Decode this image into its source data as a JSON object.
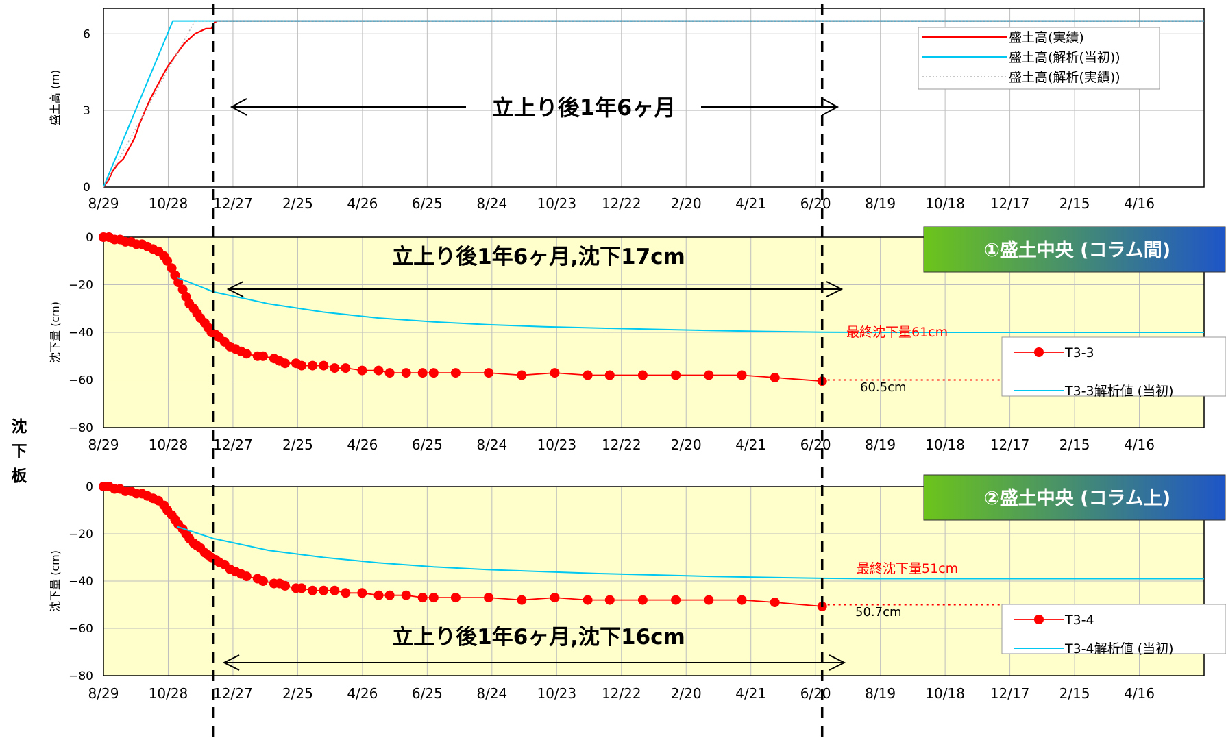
{
  "side_label": "沈下板",
  "colors": {
    "measured": "#ff0000",
    "analysis": "#00c8f0",
    "analysis_actual": "#b4b4b4",
    "plot_bg": "#ffffcc",
    "grid": "#bebebe",
    "banner_left": "#6cc41a",
    "banner_right": "#1e55c8"
  },
  "x_tick_labels": [
    "8/29",
    "10/28",
    "12/27",
    "2/25",
    "4/26",
    "6/25",
    "8/24",
    "10/23",
    "12/22",
    "2/20",
    "4/21",
    "6/20",
    "8/19",
    "10/18",
    "12/17",
    "2/15",
    "4/16"
  ],
  "marker_lines": {
    "style": "dashed-black",
    "start_day": 100,
    "end_day": 653
  },
  "chart_data": [
    {
      "type": "line",
      "ylabel": "盛土高 (m)",
      "ylim": [
        0,
        7
      ],
      "yticks": [
        0,
        3,
        6
      ],
      "xlim_days": [
        0,
        1000
      ],
      "grid": true,
      "legend_position": "top-right",
      "annotation": "立上り後1年6ヶ月",
      "series": [
        {
          "name": "盛土高(実績)",
          "style": "solid-red",
          "x": [
            0,
            5,
            8,
            13,
            18,
            23,
            28,
            33,
            38,
            43,
            48,
            53,
            58,
            63,
            68,
            73,
            78,
            83,
            88,
            93,
            98,
            100,
            103,
            105,
            1000
          ],
          "y": [
            0,
            0.3,
            0.6,
            0.9,
            1.1,
            1.5,
            1.9,
            2.5,
            3.0,
            3.5,
            3.9,
            4.3,
            4.7,
            5.0,
            5.3,
            5.6,
            5.8,
            6.0,
            6.1,
            6.2,
            6.2,
            6.4,
            6.5,
            6.5,
            6.5
          ]
        },
        {
          "name": "盛土高(解析(当初))",
          "style": "solid-cyan",
          "x": [
            0,
            63,
            1000
          ],
          "y": [
            0,
            6.5,
            6.5
          ]
        },
        {
          "name": "盛土高(解析(実績))",
          "style": "dotted-gray",
          "x": [
            0,
            83,
            1000
          ],
          "y": [
            0,
            6.5,
            6.5
          ]
        }
      ]
    },
    {
      "type": "line",
      "ylabel": "沈下量 (cm)",
      "ylim": [
        -80,
        0
      ],
      "yticks": [
        0,
        -20,
        -40,
        -60,
        -80
      ],
      "xlim_days": [
        0,
        1000
      ],
      "grid": true,
      "banner": "①盛土中央 (コラム間)",
      "annotation": "立上り後1年6ヶ月,沈下17cm",
      "final_label": "最終沈下量61cm",
      "value_label": "60.5cm",
      "legend_position": "right",
      "series": [
        {
          "name": "T3-3",
          "style": "red-dots",
          "x": [
            0,
            5,
            10,
            15,
            20,
            25,
            30,
            35,
            40,
            45,
            50,
            55,
            58,
            62,
            65,
            68,
            72,
            75,
            78,
            82,
            85,
            88,
            92,
            95,
            98,
            102,
            105,
            110,
            115,
            120,
            125,
            130,
            140,
            145,
            155,
            160,
            165,
            175,
            180,
            190,
            200,
            210,
            220,
            235,
            250,
            260,
            275,
            290,
            300,
            320,
            350,
            380,
            410,
            440,
            460,
            490,
            520,
            550,
            580,
            610,
            653
          ],
          "y": [
            0,
            0,
            -1,
            -1,
            -2,
            -2,
            -3,
            -3,
            -4,
            -5,
            -6,
            -8,
            -10,
            -13,
            -16,
            -19,
            -22,
            -25,
            -28,
            -30,
            -32,
            -34,
            -36,
            -38,
            -40,
            -41,
            -42,
            -44,
            -46,
            -47,
            -48,
            -49,
            -50,
            -50,
            -51,
            -52,
            -53,
            -53,
            -54,
            -54,
            -54,
            -55,
            -55,
            -56,
            -56,
            -57,
            -57,
            -57,
            -57,
            -57,
            -57,
            -58,
            -57,
            -58,
            -58,
            -58,
            -58,
            -58,
            -58,
            -59,
            -60.5
          ]
        },
        {
          "name": "T3-3解析値 (当初)",
          "style": "solid-cyan",
          "x": [
            67,
            100,
            150,
            200,
            250,
            300,
            350,
            400,
            450,
            500,
            550,
            600,
            653,
            700,
            800,
            1000
          ],
          "y": [
            -17,
            -23,
            -28,
            -31.5,
            -34,
            -35.6,
            -36.8,
            -37.6,
            -38.2,
            -38.7,
            -39.2,
            -39.6,
            -39.9,
            -40,
            -40,
            -40
          ]
        },
        {
          "name": "",
          "style": "dotted-red",
          "x": [
            653,
            1000
          ],
          "y": [
            -60,
            -60
          ]
        }
      ]
    },
    {
      "type": "line",
      "ylabel": "沈下量 (cm)",
      "ylim": [
        -80,
        0
      ],
      "yticks": [
        0,
        -20,
        -40,
        -60,
        -80
      ],
      "xlim_days": [
        0,
        1000
      ],
      "grid": true,
      "banner": "②盛土中央 (コラム上)",
      "annotation": "立上り後1年6ヶ月,沈下16cm",
      "final_label": "最終沈下量51cm",
      "value_label": "50.7cm",
      "legend_position": "bottom-right",
      "series": [
        {
          "name": "T3-4",
          "style": "red-dots",
          "x": [
            0,
            5,
            10,
            15,
            20,
            25,
            30,
            35,
            40,
            45,
            50,
            55,
            58,
            62,
            65,
            68,
            72,
            75,
            78,
            82,
            85,
            88,
            92,
            95,
            98,
            102,
            105,
            110,
            115,
            120,
            125,
            130,
            140,
            145,
            155,
            160,
            165,
            175,
            180,
            190,
            200,
            210,
            220,
            235,
            250,
            260,
            275,
            290,
            300,
            320,
            350,
            380,
            410,
            440,
            460,
            490,
            520,
            550,
            580,
            610,
            653
          ],
          "y": [
            0,
            0,
            -1,
            -1,
            -2,
            -2,
            -3,
            -3,
            -4,
            -5,
            -6,
            -8,
            -10,
            -12,
            -14,
            -16,
            -18,
            -20,
            -22,
            -24,
            -25,
            -26,
            -28,
            -29,
            -30,
            -31,
            -32,
            -33,
            -35,
            -36,
            -37,
            -38,
            -39,
            -40,
            -41,
            -41,
            -42,
            -43,
            -43,
            -44,
            -44,
            -44,
            -45,
            -45,
            -46,
            -46,
            -46,
            -47,
            -47,
            -47,
            -47,
            -48,
            -47,
            -48,
            -48,
            -48,
            -48,
            -48,
            -48,
            -49,
            -50.7
          ]
        },
        {
          "name": "T3-4解析値 (当初)",
          "style": "solid-cyan",
          "x": [
            67,
            100,
            150,
            200,
            250,
            300,
            350,
            400,
            450,
            500,
            550,
            600,
            653,
            700,
            800,
            1000
          ],
          "y": [
            -17,
            -22,
            -27,
            -30,
            -32.3,
            -34,
            -35.2,
            -36,
            -36.8,
            -37.4,
            -38,
            -38.4,
            -38.8,
            -39,
            -39,
            -39
          ]
        },
        {
          "name": "",
          "style": "dotted-red",
          "x": [
            653,
            1000
          ],
          "y": [
            -50,
            -50
          ]
        }
      ]
    }
  ]
}
